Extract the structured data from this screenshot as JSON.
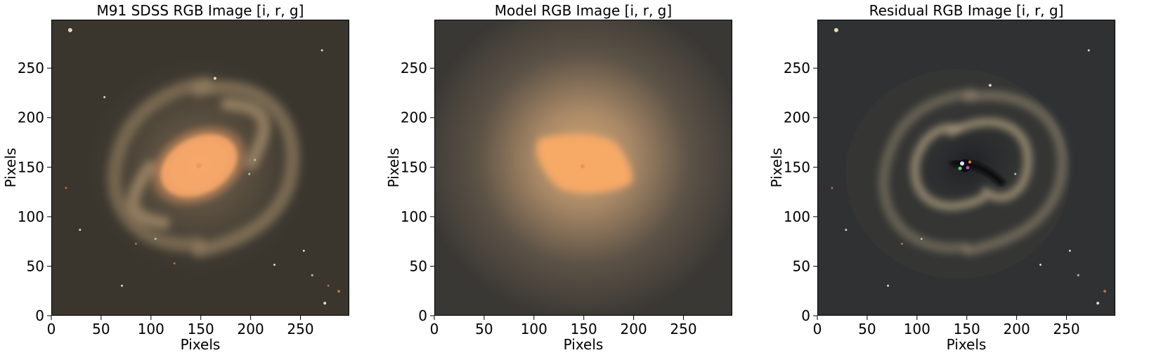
{
  "panels": [
    {
      "title": "M91 SDSS RGB Image [i, r, g]",
      "xlabel": "Pixels",
      "ylabel": "Pixels",
      "x_ticks": [
        0,
        50,
        100,
        150,
        200,
        250
      ],
      "y_ticks": [
        0,
        50,
        100,
        150,
        200,
        250
      ],
      "xlim": [
        0,
        299
      ],
      "ylim": [
        0,
        299
      ],
      "image_icon": "spiral-galaxy-image",
      "colors": {
        "background": "#3a362e",
        "core": "#f4a96a",
        "arms": "#b89a74"
      }
    },
    {
      "title": "Model RGB Image [i, r, g]",
      "xlabel": "Pixels",
      "ylabel": "Pixels",
      "x_ticks": [
        0,
        50,
        100,
        150,
        200,
        250
      ],
      "y_ticks": [
        0,
        50,
        100,
        150,
        200,
        250
      ],
      "xlim": [
        0,
        299
      ],
      "ylim": [
        0,
        299
      ],
      "image_icon": "model-galaxy-image",
      "colors": {
        "background": "#3a3835",
        "core": "#f7a966",
        "halo": "#c49a6e"
      }
    },
    {
      "title": "Residual RGB Image [i, r, g]",
      "xlabel": "Pixels",
      "ylabel": "Pixels",
      "x_ticks": [
        0,
        50,
        100,
        150,
        200,
        250
      ],
      "y_ticks": [
        0,
        50,
        100,
        150,
        200,
        250
      ],
      "xlim": [
        0,
        299
      ],
      "ylim": [
        0,
        299
      ],
      "image_icon": "residual-galaxy-image",
      "colors": {
        "background": "#2c2f31",
        "arms": "#9c8f78",
        "core": "#101216"
      }
    }
  ]
}
